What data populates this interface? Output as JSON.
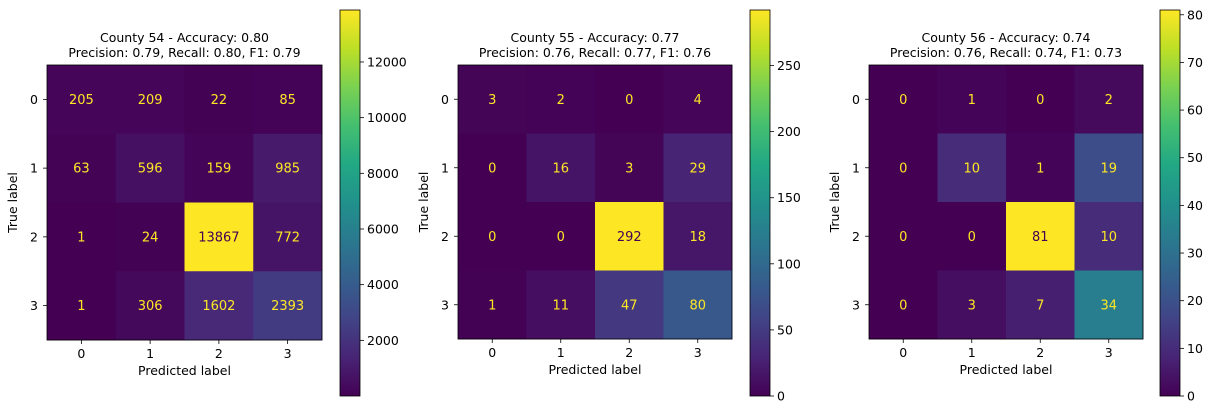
{
  "chart_data": [
    {
      "type": "heatmap",
      "title_line1": "County 54 - Accuracy: 0.80",
      "title_line2": "Precision: 0.79, Recall: 0.80, F1: 0.79",
      "xlabel": "Predicted label",
      "ylabel": "True label",
      "categories": [
        "0",
        "1",
        "2",
        "3"
      ],
      "matrix": [
        [
          205,
          209,
          22,
          85
        ],
        [
          63,
          596,
          159,
          985
        ],
        [
          1,
          24,
          13867,
          772
        ],
        [
          1,
          306,
          1602,
          2393
        ]
      ],
      "colorbar": {
        "ticks": [
          2000,
          4000,
          6000,
          8000,
          10000,
          12000
        ],
        "tick_labels": [
          "2000",
          "4000",
          "6000",
          "8000",
          "10000",
          "12000"
        ]
      },
      "colormap": "viridis"
    },
    {
      "type": "heatmap",
      "title_line1": "County 55 - Accuracy: 0.77",
      "title_line2": "Precision: 0.76, Recall: 0.77, F1: 0.76",
      "xlabel": "Predicted label",
      "ylabel": "True label",
      "categories": [
        "0",
        "1",
        "2",
        "3"
      ],
      "matrix": [
        [
          3,
          2,
          0,
          4
        ],
        [
          0,
          16,
          3,
          29
        ],
        [
          0,
          0,
          292,
          18
        ],
        [
          1,
          11,
          47,
          80
        ]
      ],
      "colorbar": {
        "ticks": [
          0,
          50,
          100,
          150,
          200,
          250
        ],
        "tick_labels": [
          "0",
          "50",
          "100",
          "150",
          "200",
          "250"
        ]
      },
      "colormap": "viridis"
    },
    {
      "type": "heatmap",
      "title_line1": "County 56 - Accuracy: 0.74",
      "title_line2": "Precision: 0.76, Recall: 0.74, F1: 0.73",
      "xlabel": "Predicted label",
      "ylabel": "True label",
      "categories": [
        "0",
        "1",
        "2",
        "3"
      ],
      "matrix": [
        [
          0,
          1,
          0,
          2
        ],
        [
          0,
          10,
          1,
          19
        ],
        [
          0,
          0,
          81,
          10
        ],
        [
          0,
          3,
          7,
          34
        ]
      ],
      "colorbar": {
        "ticks": [
          0,
          10,
          20,
          30,
          40,
          50,
          60,
          70,
          80
        ],
        "tick_labels": [
          "0",
          "10",
          "20",
          "30",
          "40",
          "50",
          "60",
          "70",
          "80"
        ]
      },
      "colormap": "viridis"
    }
  ]
}
